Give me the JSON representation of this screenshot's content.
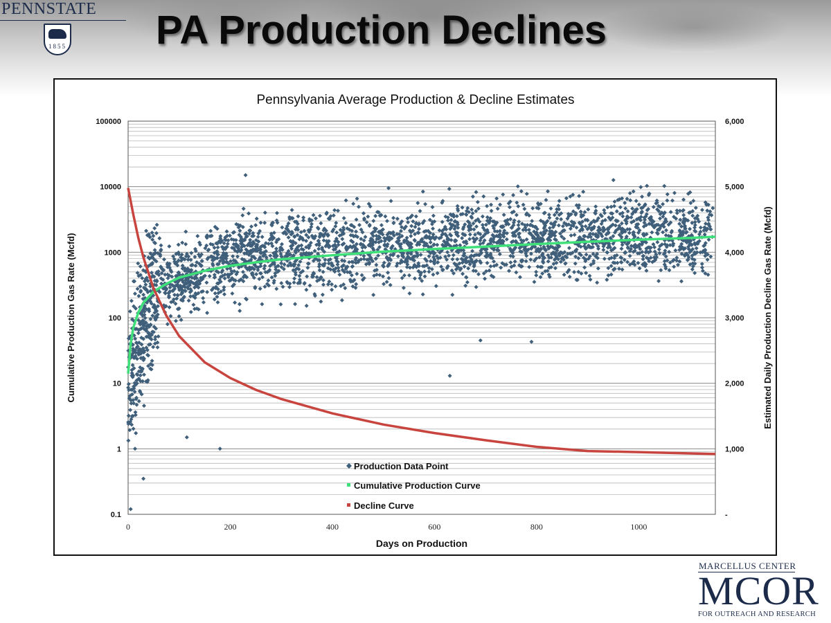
{
  "slide": {
    "title": "PA Production Declines"
  },
  "logos": {
    "pennstate_wordmark": "PENNSTATE",
    "pennstate_year": "1855",
    "mcor_top": "MARCELLUS CENTER",
    "mcor_main": "MCOR",
    "mcor_bottom": "FOR OUTREACH AND RESEARCH"
  },
  "chart_data": {
    "type": "scatter",
    "title": "Pennsylvania Average Production & Decline  Estimates",
    "xlabel": "Days on Production",
    "ylabel": "Cumulative Production Gas Rate (Mcfd)",
    "y2label": "Estimated Daily Production Decline Gas Rate (Mcfd)",
    "xlim": [
      0,
      1150
    ],
    "x_ticks": [
      "0",
      "200",
      "400",
      "600",
      "800",
      "1000"
    ],
    "ylim": [
      0.1,
      100000
    ],
    "y_scale": "log",
    "y_ticks": [
      "0.1",
      "1",
      "10",
      "100",
      "1000",
      "10000",
      "100000"
    ],
    "y2lim": [
      0,
      6000
    ],
    "y2_ticks": [
      "-",
      "1,000",
      "2,000",
      "3,000",
      "4,000",
      "5,000",
      "6,000"
    ],
    "grid": "horizontal (minor log gridlines)",
    "legend_position": "bottom-center",
    "colors": {
      "data_point": "#3f5f7a",
      "cumulative": "#3fe07a",
      "decline": "#c8443f"
    },
    "series": [
      {
        "name": "Production Data Point",
        "marker": "diamond",
        "approx_point_count": 3000,
        "highlighted_points": [
          {
            "x": 230,
            "y": 15000
          },
          {
            "x": 510,
            "y": 9500
          },
          {
            "x": 770,
            "y": 8500
          },
          {
            "x": 1070,
            "y": 8000
          },
          {
            "x": 630,
            "y": 13
          },
          {
            "x": 690,
            "y": 45
          },
          {
            "x": 790,
            "y": 43
          },
          {
            "x": 180,
            "y": 1
          },
          {
            "x": 115,
            "y": 1.5
          },
          {
            "x": 30,
            "y": 0.35
          },
          {
            "x": 5,
            "y": 0.12
          }
        ],
        "trend_y_by_x": [
          {
            "x": 0,
            "y": 10
          },
          {
            "x": 50,
            "y": 300
          },
          {
            "x": 200,
            "y": 800
          },
          {
            "x": 500,
            "y": 1300
          },
          {
            "x": 1000,
            "y": 1800
          }
        ]
      },
      {
        "name": "Cumulative Production Curve",
        "axis": "left",
        "x": [
          0,
          5,
          10,
          20,
          30,
          50,
          75,
          100,
          150,
          200,
          250,
          300,
          400,
          500,
          600,
          700,
          800,
          900,
          1000,
          1100,
          1150
        ],
        "y": [
          14,
          40,
          70,
          120,
          170,
          250,
          330,
          410,
          520,
          620,
          700,
          780,
          900,
          1020,
          1120,
          1220,
          1330,
          1440,
          1550,
          1650,
          1720
        ]
      },
      {
        "name": "Decline Curve",
        "axis": "right",
        "x": [
          0,
          10,
          20,
          30,
          50,
          75,
          100,
          150,
          200,
          250,
          300,
          400,
          500,
          600,
          700,
          800,
          900,
          1000,
          1100,
          1150
        ],
        "y": [
          4980,
          4580,
          4220,
          3920,
          3440,
          3030,
          2720,
          2320,
          2080,
          1900,
          1760,
          1540,
          1370,
          1240,
          1130,
          1030,
          965,
          950,
          930,
          920
        ]
      }
    ]
  }
}
